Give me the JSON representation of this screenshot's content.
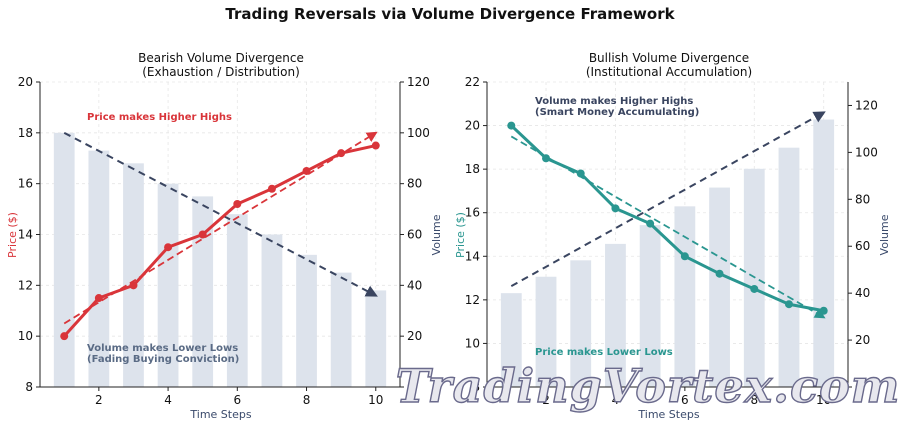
{
  "figure": {
    "title": "Trading Reversals via Volume Divergence Framework",
    "watermark": "TradingVortex.com"
  },
  "chart_data": [
    {
      "type": "bar",
      "title": "Bearish Volume Divergence",
      "subtitle": "(Exhaustion / Distribution)",
      "xlabel": "Time Steps",
      "ylabel_left": "Price ($)",
      "ylabel_right": "Volume",
      "xlim": [
        0.3,
        10.7
      ],
      "ylim_left": [
        8,
        20
      ],
      "ylim_right": [
        0,
        120
      ],
      "x_ticks": [
        2,
        4,
        6,
        8,
        10
      ],
      "y_ticks_left": [
        8,
        10,
        12,
        14,
        16,
        18,
        20
      ],
      "y_ticks_right": [
        0,
        20,
        40,
        60,
        80,
        100,
        120
      ],
      "x": [
        1,
        2,
        3,
        4,
        5,
        6,
        7,
        8,
        9,
        10
      ],
      "volume": [
        100,
        93,
        88,
        80,
        75,
        68,
        60,
        52,
        45,
        38
      ],
      "price": [
        10.0,
        11.5,
        12.0,
        13.5,
        14.0,
        15.2,
        15.8,
        16.5,
        17.2,
        17.5
      ],
      "price_trend": {
        "from": [
          1,
          10.5
        ],
        "to": [
          10,
          18.0
        ]
      },
      "volume_trend": {
        "from": [
          1,
          100
        ],
        "to": [
          10,
          36
        ]
      },
      "annotations": {
        "price": "Price makes Higher Highs",
        "volume_line1": "Volume makes Lower Lows",
        "volume_line2": "(Fading Buying Conviction)"
      },
      "colors": {
        "price": "#d9353a",
        "bars": "#dde3ec",
        "volume_trend": "#3a4560",
        "volume_text": "#5a6b85",
        "ylabel_left": "#d9353a",
        "ylabel_right": "#3a4a6b"
      }
    },
    {
      "type": "bar",
      "title": "Bullish Volume Divergence",
      "subtitle": "(Institutional Accumulation)",
      "xlabel": "Time Steps",
      "ylabel_left": "Price ($)",
      "ylabel_right": "Volume",
      "xlim": [
        0.3,
        10.7
      ],
      "ylim_left": [
        8,
        22
      ],
      "ylim_right": [
        0,
        130
      ],
      "x_ticks": [
        2,
        4,
        6,
        8,
        10
      ],
      "y_ticks_left": [
        8,
        10,
        12,
        14,
        16,
        18,
        20,
        22
      ],
      "y_ticks_right": [
        0,
        20,
        40,
        60,
        80,
        100,
        120
      ],
      "x": [
        1,
        2,
        3,
        4,
        5,
        6,
        7,
        8,
        9,
        10
      ],
      "volume": [
        40,
        47,
        54,
        61,
        69,
        77,
        85,
        93,
        102,
        114
      ],
      "price": [
        20.0,
        18.5,
        17.8,
        16.2,
        15.5,
        14.0,
        13.2,
        12.5,
        11.8,
        11.5
      ],
      "price_trend": {
        "from": [
          1,
          19.5
        ],
        "to": [
          10,
          11.2
        ]
      },
      "volume_trend": {
        "from": [
          1,
          43
        ],
        "to": [
          10,
          117
        ]
      },
      "annotations": {
        "volume_line1": "Volume makes Higher Highs",
        "volume_line2": "(Smart Money Accumulating)",
        "price": "Price makes Lower Lows"
      },
      "colors": {
        "price": "#2a9690",
        "bars": "#dde3ec",
        "volume_trend": "#3a4560",
        "volume_text": "#3a4560",
        "ylabel_left": "#2a9690",
        "ylabel_right": "#3a4a6b"
      }
    }
  ]
}
